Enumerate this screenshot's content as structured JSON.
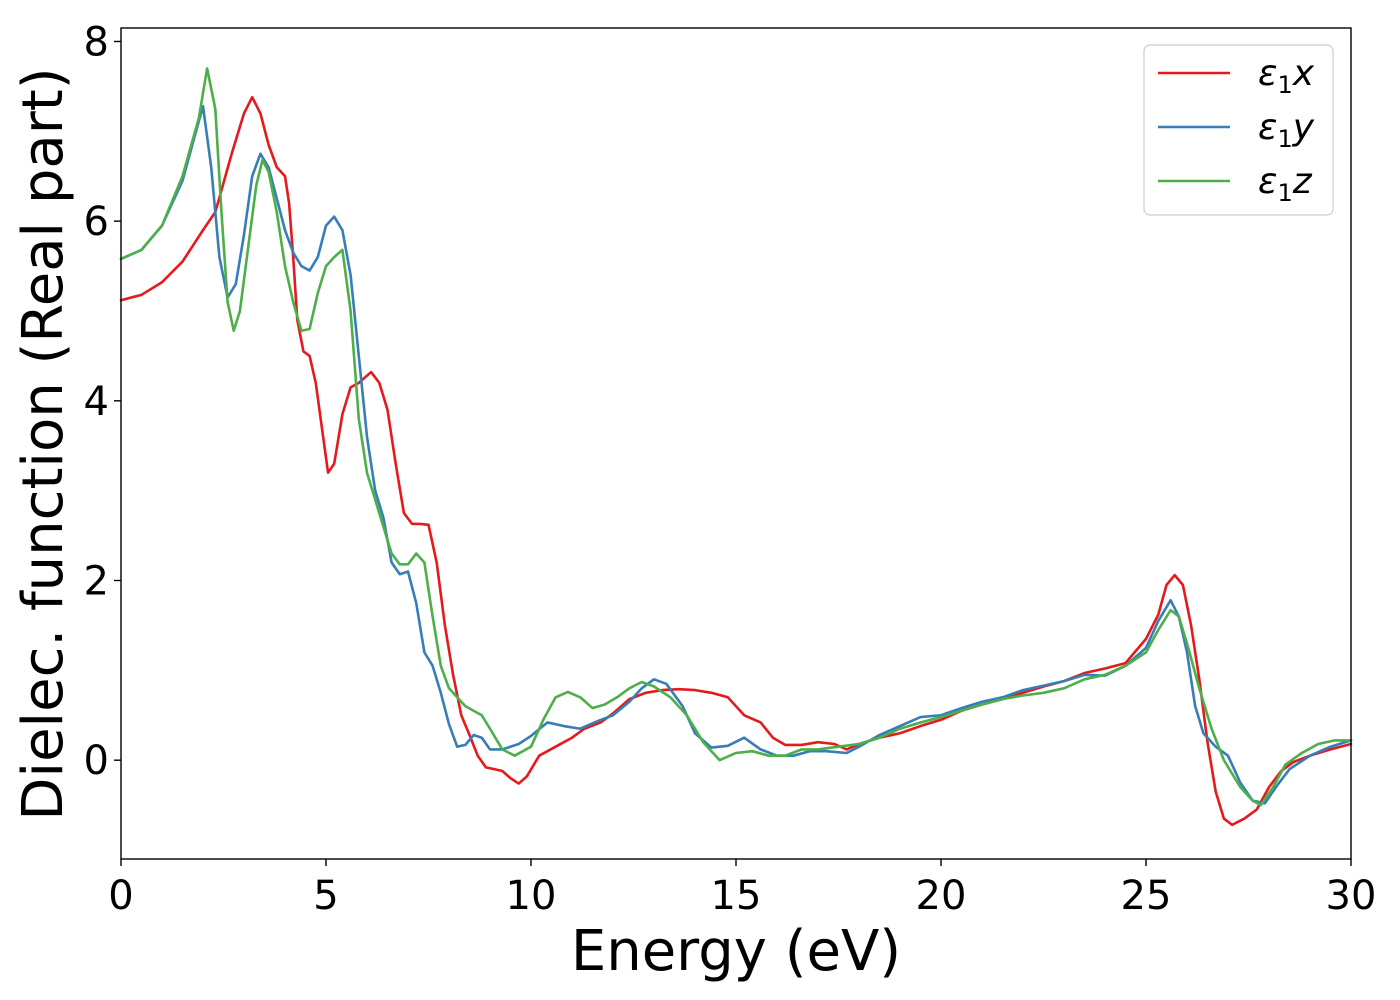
{
  "chart_data": {
    "type": "line",
    "title": "",
    "xlabel": "Energy (eV)",
    "ylabel": "Dielec. function (Real part)",
    "xlim": [
      0,
      30
    ],
    "ylim": [
      -1.1,
      8.15
    ],
    "xticks": [
      0,
      5,
      10,
      15,
      20,
      25,
      30
    ],
    "yticks": [
      0,
      2,
      4,
      6,
      8
    ],
    "xtick_labels": [
      "0",
      "5",
      "10",
      "15",
      "20",
      "25",
      "30"
    ],
    "ytick_labels": [
      "0",
      "2",
      "4",
      "6",
      "8"
    ],
    "grid": false,
    "legend_position": "top-right",
    "series": [
      {
        "name": "ε1x",
        "legend_main": "ε",
        "legend_sub": "1",
        "legend_tail": "x",
        "color": "#e41a1c",
        "points": [
          [
            0,
            5.12
          ],
          [
            0.5,
            5.18
          ],
          [
            1.0,
            5.32
          ],
          [
            1.5,
            5.55
          ],
          [
            2.0,
            5.9
          ],
          [
            2.3,
            6.1
          ],
          [
            2.7,
            6.75
          ],
          [
            3.0,
            7.2
          ],
          [
            3.2,
            7.38
          ],
          [
            3.4,
            7.2
          ],
          [
            3.6,
            6.85
          ],
          [
            3.8,
            6.6
          ],
          [
            4.0,
            6.5
          ],
          [
            4.1,
            6.2
          ],
          [
            4.2,
            5.6
          ],
          [
            4.3,
            4.9
          ],
          [
            4.45,
            4.55
          ],
          [
            4.6,
            4.5
          ],
          [
            4.75,
            4.2
          ],
          [
            4.9,
            3.7
          ],
          [
            5.05,
            3.2
          ],
          [
            5.2,
            3.3
          ],
          [
            5.4,
            3.85
          ],
          [
            5.6,
            4.15
          ],
          [
            5.8,
            4.2
          ],
          [
            6.1,
            4.32
          ],
          [
            6.3,
            4.2
          ],
          [
            6.5,
            3.9
          ],
          [
            6.7,
            3.3
          ],
          [
            6.9,
            2.75
          ],
          [
            7.1,
            2.63
          ],
          [
            7.3,
            2.63
          ],
          [
            7.5,
            2.62
          ],
          [
            7.7,
            2.2
          ],
          [
            7.9,
            1.5
          ],
          [
            8.1,
            0.95
          ],
          [
            8.3,
            0.5
          ],
          [
            8.5,
            0.28
          ],
          [
            8.7,
            0.05
          ],
          [
            8.9,
            -0.08
          ],
          [
            9.1,
            -0.1
          ],
          [
            9.3,
            -0.12
          ],
          [
            9.5,
            -0.2
          ],
          [
            9.7,
            -0.26
          ],
          [
            9.9,
            -0.18
          ],
          [
            10.2,
            0.05
          ],
          [
            10.6,
            0.15
          ],
          [
            11.0,
            0.25
          ],
          [
            11.3,
            0.35
          ],
          [
            11.7,
            0.42
          ],
          [
            12.0,
            0.52
          ],
          [
            12.4,
            0.68
          ],
          [
            12.8,
            0.75
          ],
          [
            13.2,
            0.78
          ],
          [
            13.6,
            0.79
          ],
          [
            14.0,
            0.78
          ],
          [
            14.4,
            0.75
          ],
          [
            14.8,
            0.7
          ],
          [
            15.2,
            0.5
          ],
          [
            15.6,
            0.42
          ],
          [
            15.9,
            0.25
          ],
          [
            16.2,
            0.17
          ],
          [
            16.6,
            0.17
          ],
          [
            17.0,
            0.2
          ],
          [
            17.4,
            0.18
          ],
          [
            17.7,
            0.12
          ],
          [
            18.0,
            0.18
          ],
          [
            18.5,
            0.25
          ],
          [
            19.0,
            0.3
          ],
          [
            19.5,
            0.38
          ],
          [
            20.0,
            0.45
          ],
          [
            20.5,
            0.55
          ],
          [
            21.0,
            0.62
          ],
          [
            21.5,
            0.68
          ],
          [
            22.0,
            0.75
          ],
          [
            22.5,
            0.82
          ],
          [
            23.0,
            0.88
          ],
          [
            23.5,
            0.97
          ],
          [
            24.0,
            1.02
          ],
          [
            24.5,
            1.08
          ],
          [
            25.0,
            1.35
          ],
          [
            25.3,
            1.62
          ],
          [
            25.5,
            1.95
          ],
          [
            25.7,
            2.06
          ],
          [
            25.9,
            1.95
          ],
          [
            26.1,
            1.5
          ],
          [
            26.3,
            0.9
          ],
          [
            26.5,
            0.2
          ],
          [
            26.7,
            -0.35
          ],
          [
            26.9,
            -0.65
          ],
          [
            27.1,
            -0.72
          ],
          [
            27.4,
            -0.65
          ],
          [
            27.7,
            -0.55
          ],
          [
            28.0,
            -0.3
          ],
          [
            28.3,
            -0.12
          ],
          [
            28.6,
            -0.02
          ],
          [
            29.0,
            0.05
          ],
          [
            29.5,
            0.12
          ],
          [
            30.0,
            0.18
          ]
        ]
      },
      {
        "name": "ε1y",
        "legend_main": "ε",
        "legend_sub": "1",
        "legend_tail": "y",
        "color": "#377eb8",
        "points": [
          [
            0,
            5.58
          ],
          [
            0.5,
            5.68
          ],
          [
            1.0,
            5.95
          ],
          [
            1.5,
            6.45
          ],
          [
            1.8,
            6.95
          ],
          [
            2.0,
            7.28
          ],
          [
            2.2,
            6.6
          ],
          [
            2.4,
            5.6
          ],
          [
            2.6,
            5.15
          ],
          [
            2.8,
            5.3
          ],
          [
            3.0,
            5.85
          ],
          [
            3.2,
            6.5
          ],
          [
            3.4,
            6.75
          ],
          [
            3.6,
            6.6
          ],
          [
            3.8,
            6.25
          ],
          [
            4.0,
            5.9
          ],
          [
            4.2,
            5.65
          ],
          [
            4.4,
            5.5
          ],
          [
            4.6,
            5.45
          ],
          [
            4.8,
            5.6
          ],
          [
            5.0,
            5.95
          ],
          [
            5.2,
            6.05
          ],
          [
            5.4,
            5.9
          ],
          [
            5.6,
            5.4
          ],
          [
            5.8,
            4.5
          ],
          [
            6.0,
            3.6
          ],
          [
            6.2,
            3.0
          ],
          [
            6.4,
            2.7
          ],
          [
            6.6,
            2.2
          ],
          [
            6.8,
            2.07
          ],
          [
            7.0,
            2.1
          ],
          [
            7.2,
            1.75
          ],
          [
            7.4,
            1.2
          ],
          [
            7.6,
            1.05
          ],
          [
            7.8,
            0.75
          ],
          [
            8.0,
            0.4
          ],
          [
            8.2,
            0.15
          ],
          [
            8.4,
            0.17
          ],
          [
            8.6,
            0.28
          ],
          [
            8.8,
            0.25
          ],
          [
            9.0,
            0.12
          ],
          [
            9.3,
            0.12
          ],
          [
            9.7,
            0.18
          ],
          [
            10.0,
            0.27
          ],
          [
            10.4,
            0.42
          ],
          [
            10.8,
            0.38
          ],
          [
            11.2,
            0.35
          ],
          [
            11.6,
            0.43
          ],
          [
            12.0,
            0.5
          ],
          [
            12.4,
            0.65
          ],
          [
            12.7,
            0.8
          ],
          [
            13.0,
            0.9
          ],
          [
            13.3,
            0.85
          ],
          [
            13.7,
            0.6
          ],
          [
            14.0,
            0.3
          ],
          [
            14.4,
            0.14
          ],
          [
            14.8,
            0.16
          ],
          [
            15.2,
            0.25
          ],
          [
            15.6,
            0.12
          ],
          [
            16.0,
            0.05
          ],
          [
            16.4,
            0.05
          ],
          [
            16.8,
            0.1
          ],
          [
            17.2,
            0.1
          ],
          [
            17.7,
            0.08
          ],
          [
            18.0,
            0.15
          ],
          [
            18.5,
            0.28
          ],
          [
            19.0,
            0.38
          ],
          [
            19.5,
            0.48
          ],
          [
            20.0,
            0.5
          ],
          [
            20.5,
            0.58
          ],
          [
            21.0,
            0.65
          ],
          [
            21.5,
            0.7
          ],
          [
            22.0,
            0.78
          ],
          [
            22.5,
            0.83
          ],
          [
            23.0,
            0.88
          ],
          [
            23.5,
            0.95
          ],
          [
            24.0,
            0.94
          ],
          [
            24.5,
            1.05
          ],
          [
            25.0,
            1.25
          ],
          [
            25.3,
            1.55
          ],
          [
            25.6,
            1.78
          ],
          [
            25.8,
            1.6
          ],
          [
            26.0,
            1.2
          ],
          [
            26.2,
            0.6
          ],
          [
            26.4,
            0.3
          ],
          [
            26.7,
            0.15
          ],
          [
            27.0,
            0.05
          ],
          [
            27.3,
            -0.25
          ],
          [
            27.6,
            -0.45
          ],
          [
            27.9,
            -0.48
          ],
          [
            28.2,
            -0.28
          ],
          [
            28.5,
            -0.1
          ],
          [
            29.0,
            0.05
          ],
          [
            29.5,
            0.15
          ],
          [
            30.0,
            0.22
          ]
        ]
      },
      {
        "name": "ε1z",
        "legend_main": "ε",
        "legend_sub": "1",
        "legend_tail": "z",
        "color": "#4daf4a",
        "points": [
          [
            0,
            5.58
          ],
          [
            0.5,
            5.68
          ],
          [
            1.0,
            5.95
          ],
          [
            1.5,
            6.5
          ],
          [
            1.9,
            7.15
          ],
          [
            2.1,
            7.7
          ],
          [
            2.3,
            7.25
          ],
          [
            2.45,
            6.1
          ],
          [
            2.6,
            5.1
          ],
          [
            2.75,
            4.78
          ],
          [
            2.9,
            5.0
          ],
          [
            3.1,
            5.7
          ],
          [
            3.3,
            6.4
          ],
          [
            3.45,
            6.68
          ],
          [
            3.6,
            6.55
          ],
          [
            3.8,
            6.1
          ],
          [
            4.0,
            5.5
          ],
          [
            4.2,
            5.1
          ],
          [
            4.4,
            4.78
          ],
          [
            4.6,
            4.8
          ],
          [
            4.8,
            5.2
          ],
          [
            5.0,
            5.5
          ],
          [
            5.2,
            5.6
          ],
          [
            5.4,
            5.68
          ],
          [
            5.6,
            5.0
          ],
          [
            5.8,
            3.8
          ],
          [
            6.0,
            3.2
          ],
          [
            6.2,
            2.9
          ],
          [
            6.4,
            2.6
          ],
          [
            6.6,
            2.3
          ],
          [
            6.8,
            2.18
          ],
          [
            7.0,
            2.18
          ],
          [
            7.2,
            2.3
          ],
          [
            7.4,
            2.2
          ],
          [
            7.6,
            1.6
          ],
          [
            7.8,
            1.05
          ],
          [
            8.0,
            0.8
          ],
          [
            8.2,
            0.7
          ],
          [
            8.4,
            0.6
          ],
          [
            8.6,
            0.55
          ],
          [
            8.8,
            0.5
          ],
          [
            9.0,
            0.35
          ],
          [
            9.3,
            0.12
          ],
          [
            9.6,
            0.05
          ],
          [
            10.0,
            0.15
          ],
          [
            10.3,
            0.45
          ],
          [
            10.6,
            0.7
          ],
          [
            10.9,
            0.76
          ],
          [
            11.2,
            0.7
          ],
          [
            11.5,
            0.58
          ],
          [
            11.8,
            0.62
          ],
          [
            12.1,
            0.7
          ],
          [
            12.4,
            0.8
          ],
          [
            12.7,
            0.87
          ],
          [
            13.0,
            0.82
          ],
          [
            13.4,
            0.7
          ],
          [
            13.8,
            0.5
          ],
          [
            14.2,
            0.2
          ],
          [
            14.6,
            0.0
          ],
          [
            15.0,
            0.08
          ],
          [
            15.4,
            0.1
          ],
          [
            15.8,
            0.05
          ],
          [
            16.2,
            0.05
          ],
          [
            16.6,
            0.12
          ],
          [
            17.0,
            0.12
          ],
          [
            17.5,
            0.15
          ],
          [
            18.0,
            0.18
          ],
          [
            18.5,
            0.25
          ],
          [
            19.0,
            0.35
          ],
          [
            19.5,
            0.42
          ],
          [
            20.0,
            0.48
          ],
          [
            20.5,
            0.55
          ],
          [
            21.0,
            0.62
          ],
          [
            21.5,
            0.68
          ],
          [
            22.0,
            0.72
          ],
          [
            22.5,
            0.75
          ],
          [
            23.0,
            0.8
          ],
          [
            23.5,
            0.9
          ],
          [
            24.0,
            0.95
          ],
          [
            24.5,
            1.05
          ],
          [
            25.0,
            1.2
          ],
          [
            25.3,
            1.45
          ],
          [
            25.6,
            1.67
          ],
          [
            25.8,
            1.6
          ],
          [
            26.0,
            1.3
          ],
          [
            26.3,
            0.8
          ],
          [
            26.6,
            0.35
          ],
          [
            26.9,
            0.0
          ],
          [
            27.3,
            -0.3
          ],
          [
            27.6,
            -0.45
          ],
          [
            27.8,
            -0.5
          ],
          [
            28.1,
            -0.3
          ],
          [
            28.4,
            -0.05
          ],
          [
            28.8,
            0.08
          ],
          [
            29.2,
            0.18
          ],
          [
            29.6,
            0.22
          ],
          [
            30.0,
            0.22
          ]
        ]
      }
    ]
  }
}
